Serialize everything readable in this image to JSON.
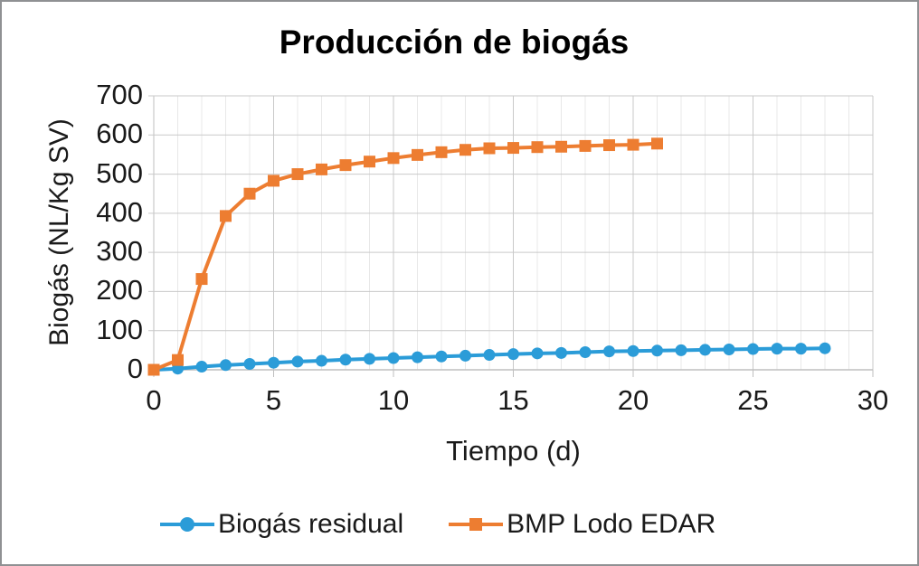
{
  "frame": {
    "background": "#ffffff",
    "border_color": "#8f9193"
  },
  "colors": {
    "series_residual": "#2B9CD8",
    "series_bmp": "#ED7D31",
    "gridline_major": "#c9c9c9",
    "gridline_minor": "#e8e8e8",
    "axis_line": "#bfbfbf",
    "text": "#1a1a1a",
    "title_text": "#000000"
  },
  "chart_data": {
    "type": "line",
    "title": "Producción de biogás",
    "xlabel": "Tiempo (d)",
    "ylabel": "Biogás (NL/Kg SV)",
    "xlim": [
      0,
      30
    ],
    "ylim": [
      0,
      700
    ],
    "x_ticks": [
      0,
      5,
      10,
      15,
      20,
      25,
      30
    ],
    "y_ticks": [
      0,
      100,
      200,
      300,
      400,
      500,
      600,
      700
    ],
    "x_minor_step": 1,
    "grid": true,
    "legend_position": "bottom",
    "series": [
      {
        "name": "Biogás residual",
        "color": "#2B9CD8",
        "marker": "circle",
        "x": [
          0,
          1,
          2,
          3,
          4,
          5,
          6,
          7,
          8,
          9,
          10,
          11,
          12,
          13,
          14,
          15,
          16,
          17,
          18,
          19,
          20,
          21,
          22,
          23,
          24,
          25,
          26,
          27,
          28
        ],
        "values": [
          0,
          3,
          8,
          12,
          15,
          18,
          21,
          23,
          26,
          28,
          30,
          32,
          34,
          36,
          38,
          40,
          42,
          43,
          45,
          47,
          48,
          49,
          50,
          51,
          52,
          53,
          54,
          54,
          55
        ]
      },
      {
        "name": "BMP Lodo EDAR",
        "color": "#ED7D31",
        "marker": "square",
        "x": [
          0,
          1,
          2,
          3,
          4,
          5,
          6,
          7,
          8,
          9,
          10,
          11,
          12,
          13,
          14,
          15,
          16,
          17,
          18,
          19,
          20,
          21
        ],
        "values": [
          0,
          25,
          232,
          393,
          450,
          483,
          500,
          512,
          523,
          532,
          541,
          549,
          556,
          562,
          566,
          567,
          569,
          570,
          572,
          574,
          575,
          578
        ]
      }
    ]
  }
}
